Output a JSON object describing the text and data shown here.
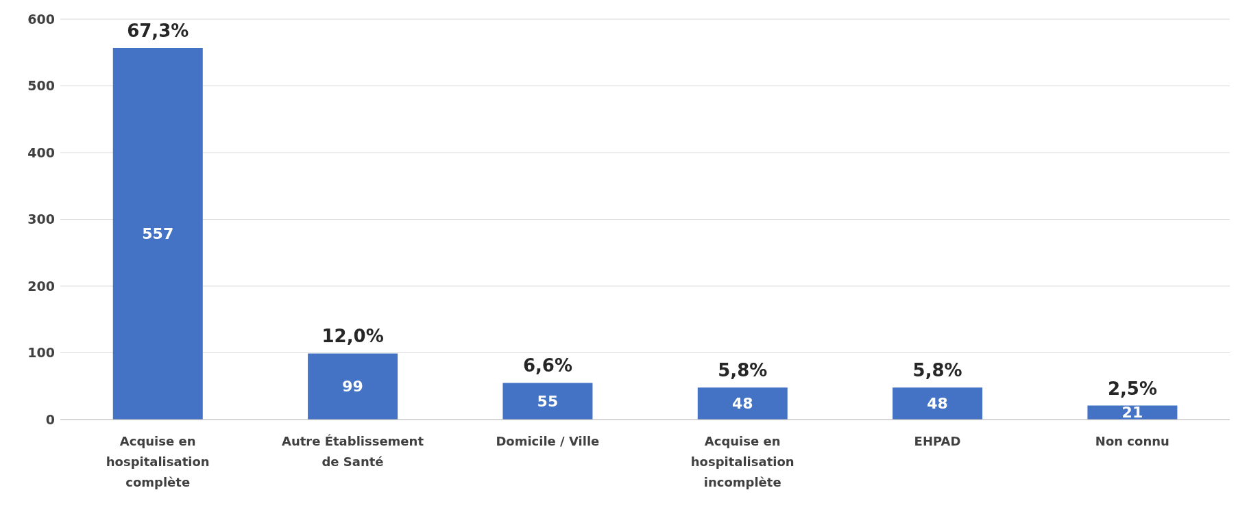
{
  "chart_data": {
    "type": "bar",
    "categories": [
      "Acquise en hospitalisation complète",
      "Autre Établissement de Santé",
      "Domicile / Ville",
      "Acquise en hospitalisation incomplète",
      "EHPAD",
      "Non connu"
    ],
    "values": [
      557,
      99,
      55,
      48,
      48,
      21
    ],
    "color": "#4472c4",
    "ylim": [
      0,
      600
    ],
    "yticks": [
      0,
      100,
      200,
      300,
      400,
      500,
      600
    ],
    "grid": "y",
    "data_labels": true,
    "legend": false,
    "annotations": [
      {
        "text": "67,3%",
        "x": "Acquise en hospitalisation complète",
        "y": 557
      },
      {
        "text": "12,0%",
        "x": "Autre Établissement de Santé",
        "y": 99
      },
      {
        "text": "6,6%",
        "x": "Domicile / Ville",
        "y": 55
      },
      {
        "text": "5,8%",
        "x": "Acquise en hospitalisation incomplète",
        "y": 48
      },
      {
        "text": "5,8%",
        "x": "EHPAD",
        "y": 48
      },
      {
        "text": "2,5%",
        "x": "Non connu",
        "y": 21
      }
    ]
  }
}
